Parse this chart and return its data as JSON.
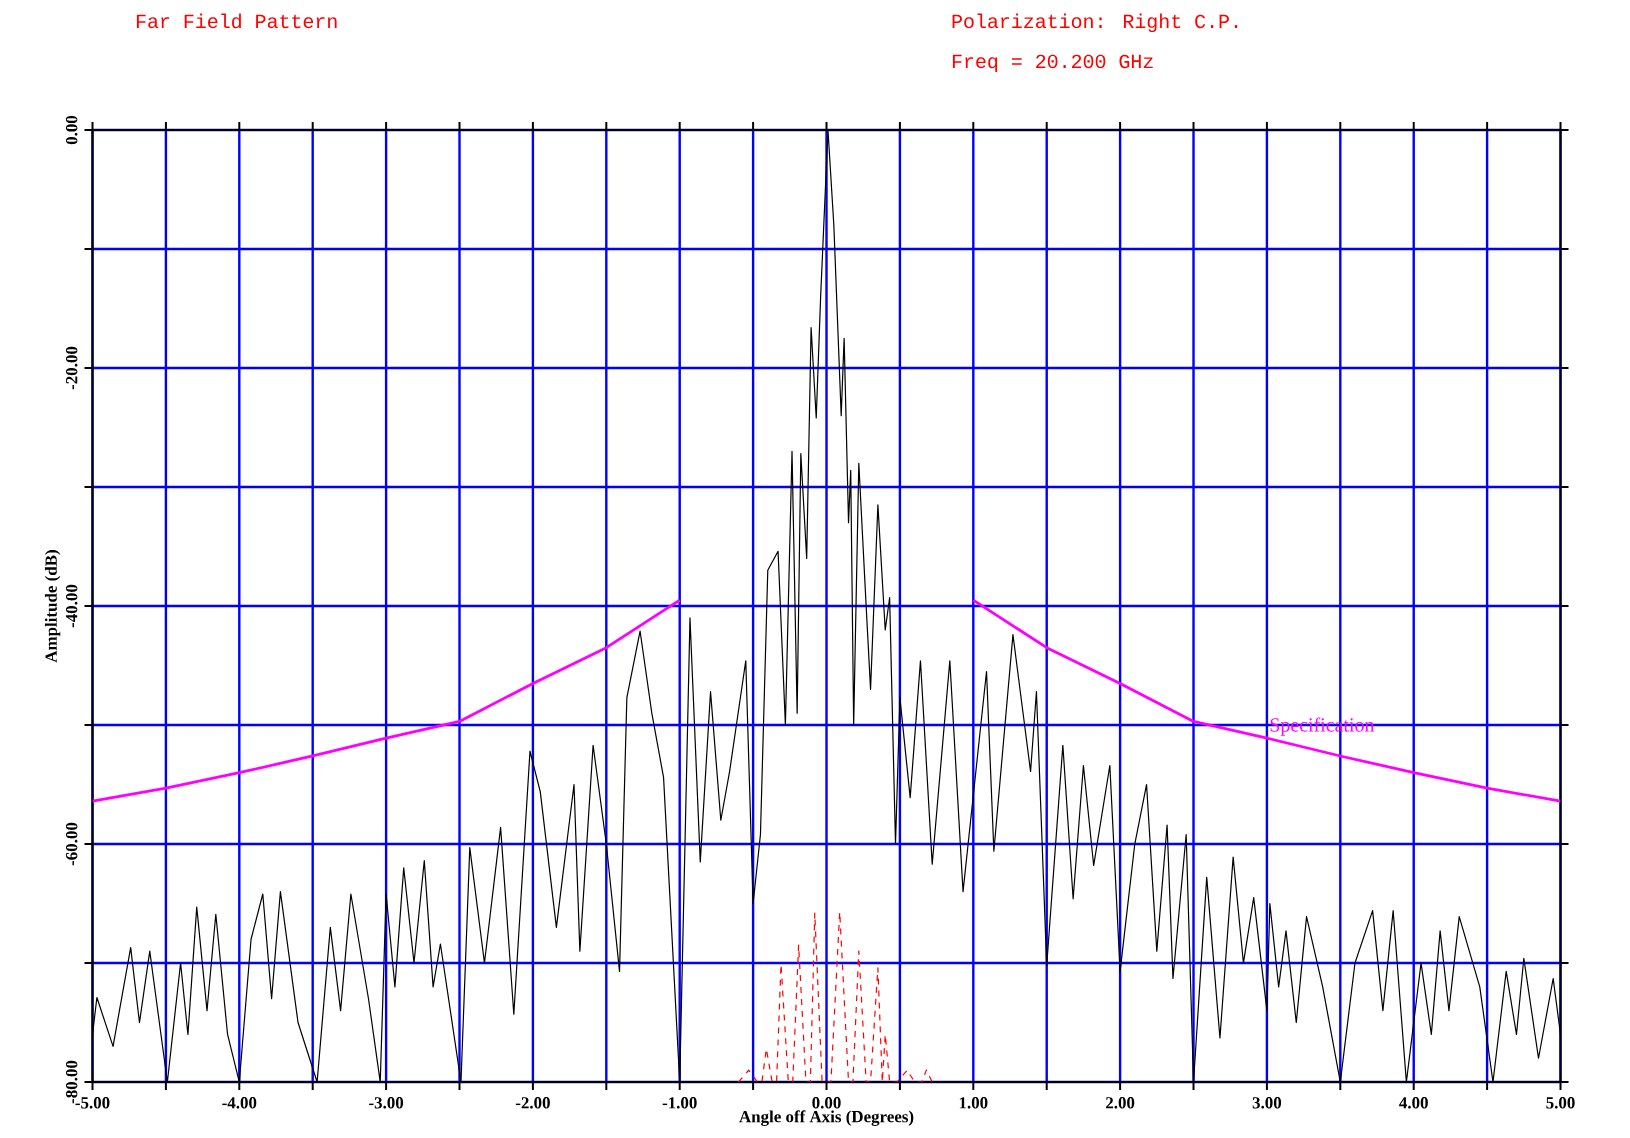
{
  "chart_data": {
    "type": "line",
    "title": "Far Field Pattern",
    "subtitle": "Polarization: Right C.P.",
    "annotations": [
      "Freq = 20.200 GHz"
    ],
    "xlabel": "Angle off Axis (Degrees)",
    "ylabel": "Amplitude (dB)",
    "xlim": [
      -5,
      5
    ],
    "ylim": [
      -80,
      0
    ],
    "xticks": [
      {
        "value": -5,
        "label": "-5.00"
      },
      {
        "value": -4.5,
        "label": null
      },
      {
        "value": -4,
        "label": "-4.00"
      },
      {
        "value": -3.5,
        "label": null
      },
      {
        "value": -3,
        "label": "-3.00"
      },
      {
        "value": -2.5,
        "label": null
      },
      {
        "value": -2,
        "label": "-2.00"
      },
      {
        "value": -1.5,
        "label": null
      },
      {
        "value": -1,
        "label": "-1.00"
      },
      {
        "value": -0.5,
        "label": null
      },
      {
        "value": 0,
        "label": "0.00"
      },
      {
        "value": 0.5,
        "label": null
      },
      {
        "value": 1,
        "label": "1.00"
      },
      {
        "value": 1.5,
        "label": null
      },
      {
        "value": 2,
        "label": "2.00"
      },
      {
        "value": 2.5,
        "label": null
      },
      {
        "value": 3,
        "label": "3.00"
      },
      {
        "value": 3.5,
        "label": null
      },
      {
        "value": 4,
        "label": "4.00"
      },
      {
        "value": 4.5,
        "label": null
      },
      {
        "value": 5,
        "label": "5.00"
      }
    ],
    "yticks": [
      {
        "value": -80,
        "label": "-80.00"
      },
      {
        "value": -70,
        "label": null
      },
      {
        "value": -60,
        "label": "-60.00"
      },
      {
        "value": -50,
        "label": null
      },
      {
        "value": -40,
        "label": "-40.00"
      },
      {
        "value": -30,
        "label": null
      },
      {
        "value": -20,
        "label": "-20.00"
      },
      {
        "value": -10,
        "label": null
      },
      {
        "value": 0,
        "label": "0.00"
      }
    ],
    "grid": true,
    "series": [
      {
        "color": "#000000",
        "x": [
          -5.0,
          -4.97,
          -4.86,
          -4.74,
          -4.68,
          -4.61,
          -4.49,
          -4.4,
          -4.35,
          -4.29,
          -4.22,
          -4.16,
          -4.08,
          -4.0,
          -3.92,
          -3.84,
          -3.78,
          -3.72,
          -3.6,
          -3.47,
          -3.38,
          -3.31,
          -3.24,
          -3.12,
          -3.04,
          -3.0,
          -2.94,
          -2.88,
          -2.81,
          -2.74,
          -2.68,
          -2.63,
          -2.49,
          -2.43,
          -2.33,
          -2.22,
          -2.13,
          -2.02,
          -1.95,
          -1.84,
          -1.72,
          -1.68,
          -1.59,
          -1.5,
          -1.41,
          -1.36,
          -1.27,
          -1.19,
          -1.11,
          -1.0,
          -0.93,
          -0.86,
          -0.79,
          -0.72,
          -0.66,
          -0.55,
          -0.5,
          -0.45,
          -0.4,
          -0.33,
          -0.28,
          -0.235,
          -0.2,
          -0.175,
          -0.135,
          -0.105,
          -0.07,
          -0.04,
          0.01,
          0.05,
          0.1,
          0.12,
          0.15,
          0.165,
          0.185,
          0.22,
          0.27,
          0.3,
          0.35,
          0.4,
          0.43,
          0.47,
          0.5,
          0.57,
          0.64,
          0.72,
          0.84,
          0.93,
          1.09,
          1.14,
          1.27,
          1.39,
          1.43,
          1.5,
          1.61,
          1.68,
          1.75,
          1.82,
          1.93,
          2.0,
          2.1,
          2.18,
          2.25,
          2.32,
          2.36,
          2.45,
          2.5,
          2.59,
          2.68,
          2.77,
          2.84,
          2.91,
          3.0,
          3.02,
          3.08,
          3.13,
          3.2,
          3.27,
          3.38,
          3.5,
          3.6,
          3.72,
          3.79,
          3.86,
          3.95,
          4.05,
          4.12,
          4.18,
          4.24,
          4.31,
          4.45,
          4.54,
          4.63,
          4.7,
          4.75,
          4.85,
          4.95,
          5.0
        ],
        "values": [
          -76,
          -72.9,
          -77,
          -68.7,
          -75,
          -69,
          -80,
          -70,
          -76,
          -65.3,
          -74,
          -65.9,
          -76,
          -80,
          -68,
          -64.2,
          -73,
          -64,
          -75,
          -80,
          -67,
          -74,
          -64.2,
          -73,
          -80,
          -64.2,
          -72,
          -62,
          -70,
          -61.4,
          -72,
          -68.4,
          -80,
          -60.3,
          -70,
          -58.6,
          -74.3,
          -52.2,
          -55.6,
          -67,
          -55,
          -69,
          -51.7,
          -60,
          -70.7,
          -47.7,
          -42.1,
          -49,
          -54.4,
          -80,
          -41,
          -61.5,
          -47.2,
          -58,
          -53.9,
          -44.6,
          -65,
          -59.2,
          -37,
          -35.4,
          -50,
          -27,
          -49,
          -27.2,
          -36,
          -16.6,
          -24.2,
          -14,
          0,
          -8,
          -24,
          -17.5,
          -33,
          -28.6,
          -50,
          -28,
          -40,
          -47,
          -31.5,
          -42,
          -39.3,
          -60,
          -47.7,
          -56.1,
          -44.6,
          -61.7,
          -44.6,
          -64,
          -45.5,
          -60.6,
          -42.4,
          -53.9,
          -47.2,
          -70.2,
          -51.7,
          -64.6,
          -53.4,
          -61.8,
          -53.4,
          -70.7,
          -60,
          -55,
          -69,
          -58.4,
          -71.3,
          -59.2,
          -80,
          -62.8,
          -76.3,
          -61.1,
          -70,
          -64.5,
          -74,
          -65,
          -72,
          -67.3,
          -75,
          -66.1,
          -72,
          -80,
          -70,
          -65.6,
          -74,
          -65.6,
          -80,
          -70,
          -76,
          -67.3,
          -74,
          -66.1,
          -72,
          -80,
          -70.7,
          -76,
          -69.6,
          -78,
          -71.3,
          -76
        ]
      },
      {
        "color": "#ff0000",
        "line_style": "dashed",
        "x": [
          -0.6,
          -0.53,
          -0.47,
          -0.44,
          -0.41,
          -0.37,
          -0.34,
          -0.31,
          -0.26,
          -0.23,
          -0.19,
          -0.14,
          -0.11,
          -0.08,
          -0.03,
          0.0,
          0.03,
          0.09,
          0.15,
          0.18,
          0.22,
          0.27,
          0.3,
          0.35,
          0.38,
          0.4,
          0.43,
          0.48,
          0.55,
          0.6,
          0.65,
          0.68,
          0.72
        ],
        "values": [
          -80,
          -79,
          -80,
          -80,
          -77.2,
          -80,
          -80,
          -70.1,
          -80,
          -80,
          -68.5,
          -80,
          -80,
          -65.8,
          -80,
          -80,
          -80,
          -65.7,
          -80,
          -80,
          -69,
          -80,
          -80,
          -70.4,
          -80,
          -76,
          -80,
          -80,
          -79,
          -80,
          -80,
          -79,
          -80
        ]
      },
      {
        "name": "Specification",
        "color": "#ff00ff",
        "x": [
          -5,
          -4.5,
          -4,
          -3.5,
          -3,
          -2.5,
          -2,
          -1.5,
          -1,
          0,
          1,
          1.5,
          2,
          2.5,
          3,
          3.5,
          4,
          4.5,
          5
        ],
        "values": [
          -56.4,
          -55.3,
          -54,
          -52.6,
          -51.1,
          -49.7,
          -46.5,
          -43.5,
          -39.5,
          null,
          -39.5,
          -43.5,
          -46.5,
          -49.7,
          -51.1,
          -52.6,
          -54,
          -55.3,
          -56.4
        ]
      }
    ]
  }
}
